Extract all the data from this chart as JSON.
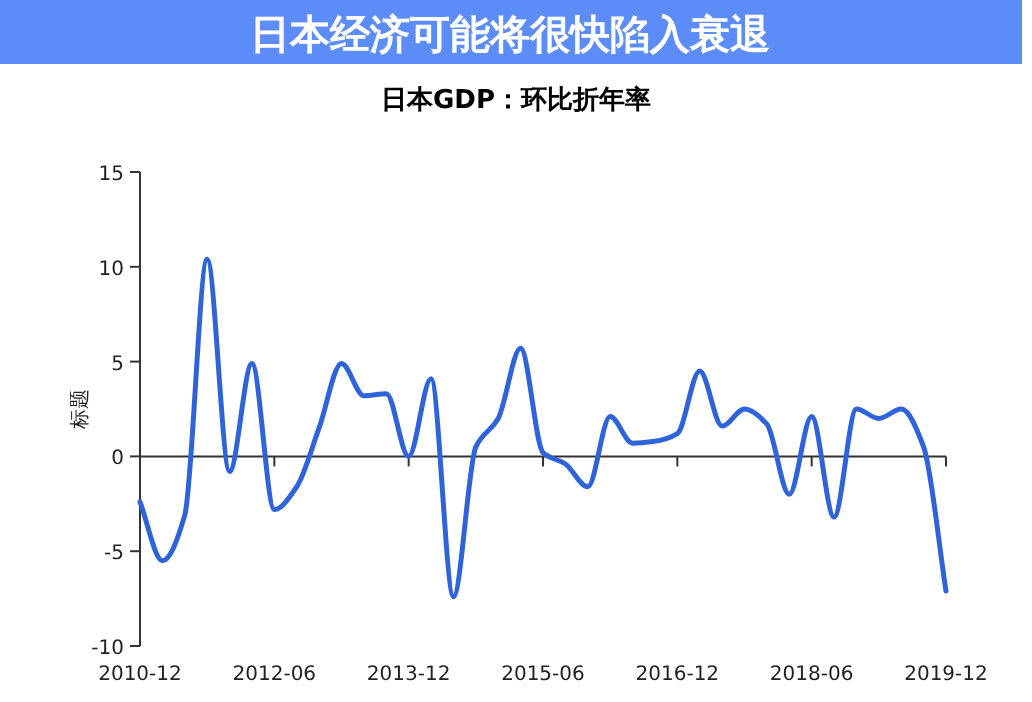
{
  "chart_data": {
    "type": "line",
    "title": "日本经济可能将很快陷入衰退",
    "subtitle": "日本GDP：环比折年率",
    "ylabel": "标题",
    "categories": [
      "2010-12",
      null,
      null,
      null,
      null,
      null,
      "2012-06",
      null,
      null,
      null,
      null,
      null,
      "2013-12",
      null,
      null,
      null,
      null,
      null,
      "2015-06",
      null,
      null,
      null,
      null,
      null,
      "2016-12",
      null,
      null,
      null,
      null,
      null,
      "2018-06",
      null,
      null,
      null,
      null,
      null,
      "2019-12"
    ],
    "series": [
      {
        "color": "#2f64d8",
        "values": [
          -2.4,
          -5.5,
          -3.1,
          10.4,
          -0.8,
          4.9,
          -2.8,
          -1.6,
          1.5,
          4.9,
          3.2,
          3.3,
          0,
          4.1,
          -7.4,
          0.5,
          2.0,
          5.7,
          0.2,
          -0.4,
          -1.6,
          2.1,
          0.7,
          0.8,
          1.2,
          4.5,
          1.6,
          2.5,
          1.7,
          -2.0,
          2.1,
          -3.2,
          2.5,
          2.0,
          2.5,
          0.5,
          -7.1
        ]
      }
    ],
    "ylim": [
      -10,
      15
    ],
    "yticks": [
      -10,
      -5,
      0,
      5,
      10,
      15
    ]
  }
}
